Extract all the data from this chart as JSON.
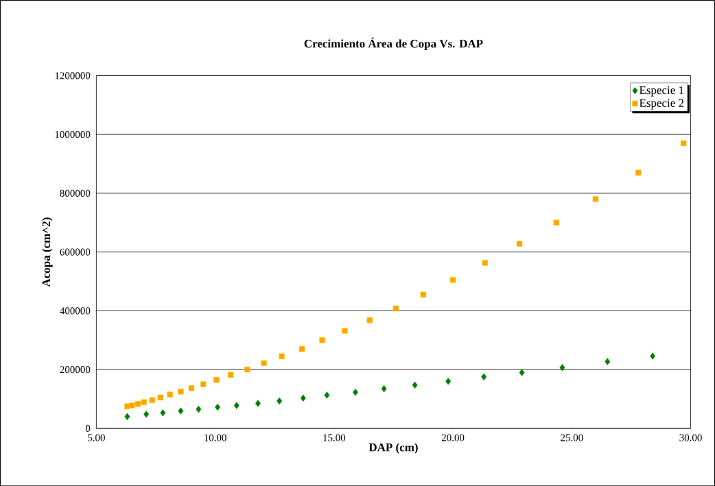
{
  "chart_data": {
    "type": "scatter",
    "title": "Crecimiento Área de Copa Vs. DAP",
    "xlabel": "DAP (cm)",
    "ylabel": "Acopa (cm^2)",
    "xlim": [
      5,
      30
    ],
    "ylim": [
      0,
      1200000
    ],
    "xticks": [
      {
        "value": 5,
        "label": "5.00"
      },
      {
        "value": 10,
        "label": "10.00"
      },
      {
        "value": 15,
        "label": "15.00"
      },
      {
        "value": 20,
        "label": "20.00"
      },
      {
        "value": 25,
        "label": "25.00"
      },
      {
        "value": 30,
        "label": "30.00"
      }
    ],
    "yticks": [
      0,
      200000,
      400000,
      600000,
      800000,
      1000000,
      1200000
    ],
    "grid": "y",
    "legend": "top right",
    "series": [
      {
        "name": "Especie 1",
        "color": "#008000",
        "marker": "diamond",
        "x": [
          6.3,
          7.1,
          7.8,
          8.55,
          9.3,
          10.1,
          10.9,
          11.8,
          12.7,
          13.7,
          14.7,
          15.9,
          17.1,
          18.4,
          19.8,
          21.3,
          22.9,
          24.6,
          26.5,
          28.4
        ],
        "values": [
          40000,
          48000,
          53000,
          59000,
          65000,
          72000,
          78000,
          85000,
          93000,
          103000,
          113000,
          123000,
          135000,
          147000,
          160000,
          175000,
          190000,
          207000,
          227000,
          246000
        ]
      },
      {
        "name": "Especie 2",
        "color": "#ffa500",
        "marker": "square",
        "x": [
          6.3,
          6.5,
          6.75,
          7.0,
          7.35,
          7.7,
          8.1,
          8.55,
          9.0,
          9.5,
          10.05,
          10.65,
          11.35,
          12.05,
          12.8,
          13.65,
          14.5,
          15.45,
          16.5,
          17.6,
          18.75,
          20.0,
          21.35,
          22.8,
          24.35,
          26.0,
          27.8,
          29.7
        ],
        "values": [
          75000,
          78000,
          83000,
          89000,
          96000,
          105000,
          115000,
          125000,
          137000,
          150000,
          165000,
          182000,
          200000,
          222000,
          245000,
          270000,
          300000,
          332000,
          368000,
          408000,
          455000,
          505000,
          563000,
          628000,
          700000,
          780000,
          870000,
          970000
        ]
      }
    ]
  }
}
